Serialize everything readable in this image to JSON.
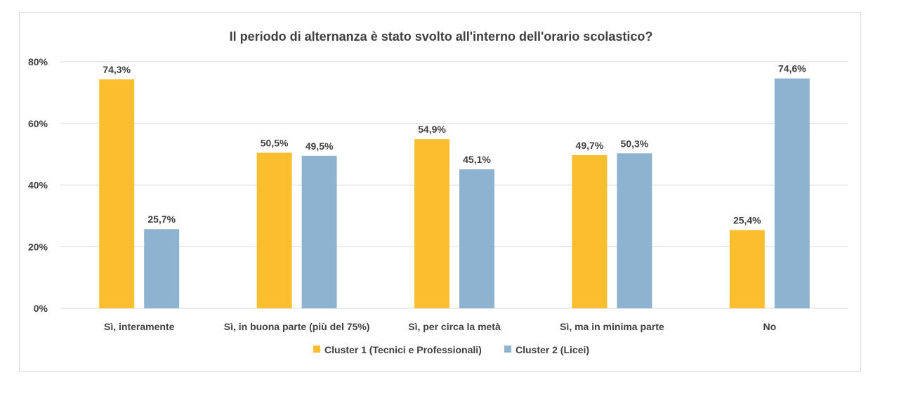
{
  "chart_data": {
    "type": "bar",
    "title": "Il periodo di alternanza è stato svolto all'interno dell'orario scolastico?",
    "xlabel": "",
    "ylabel": "",
    "ylim": [
      0,
      80
    ],
    "yticks": [
      0,
      20,
      40,
      60,
      80
    ],
    "ytick_labels": [
      "0%",
      "20%",
      "40%",
      "60%",
      "80%"
    ],
    "grid": true,
    "legend_position": "bottom",
    "categories": [
      "Sì, interamente",
      "Sì, in buona parte (più del 75%)",
      "Sì, per circa la metà",
      "Sì, ma in minima parte",
      "No"
    ],
    "series": [
      {
        "name": "Cluster 1 (Tecnici e Professionali)",
        "color": "#FBBE2E",
        "values": [
          74.3,
          50.5,
          54.9,
          49.7,
          25.4
        ],
        "labels": [
          "74,3%",
          "50,5%",
          "54,9%",
          "49,7%",
          "25,4%"
        ]
      },
      {
        "name": "Cluster 2 (Licei)",
        "color": "#8EB3D1",
        "values": [
          25.7,
          49.5,
          45.1,
          50.3,
          74.6
        ],
        "labels": [
          "25,7%",
          "49,5%",
          "45,1%",
          "50,3%",
          "74,6%"
        ]
      }
    ]
  }
}
